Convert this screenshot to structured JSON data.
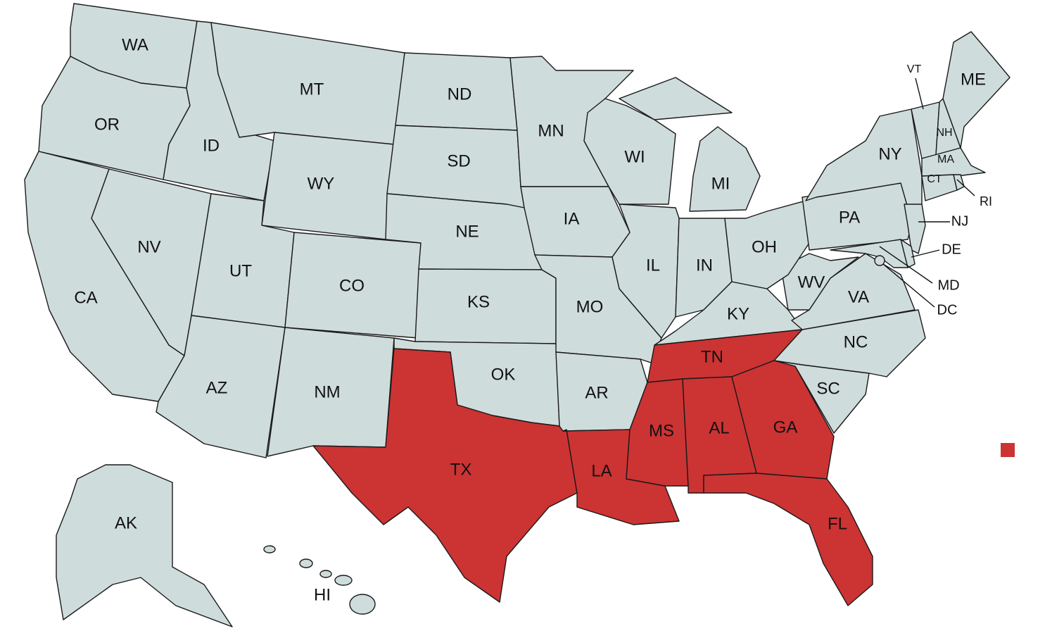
{
  "colors": {
    "default": "#cfdcdc",
    "highlight": "#cc3333",
    "border": "#1a1a1a"
  },
  "highlighted": [
    "TX",
    "LA",
    "MS",
    "AL",
    "GA",
    "FL",
    "TN"
  ],
  "states": [
    "WA",
    "OR",
    "CA",
    "ID",
    "NV",
    "MT",
    "WY",
    "UT",
    "AZ",
    "CO",
    "NM",
    "ND",
    "SD",
    "NE",
    "KS",
    "OK",
    "TX",
    "MN",
    "IA",
    "MO",
    "AR",
    "LA",
    "WI",
    "IL",
    "MI",
    "IN",
    "KY",
    "TN",
    "MS",
    "AL",
    "GA",
    "FL",
    "SC",
    "NC",
    "VA",
    "WV",
    "OH",
    "PA",
    "NY",
    "VT",
    "NH",
    "ME",
    "MA",
    "CT",
    "RI",
    "NJ",
    "DE",
    "MD",
    "DC",
    "AK",
    "HI"
  ],
  "legend": {
    "swatch_color": "#cc3333"
  }
}
